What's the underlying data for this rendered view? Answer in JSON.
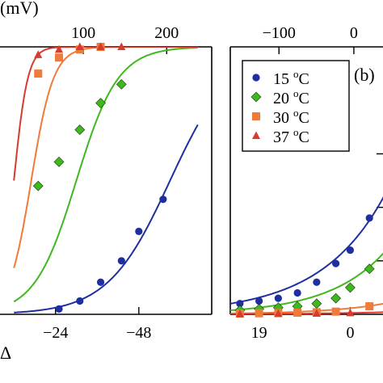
{
  "chart_data": [
    {
      "type": "line",
      "panel": "a",
      "top_axis_label": "(mV)",
      "top_ticks": [
        {
          "label": "100",
          "v": 100
        },
        {
          "label": "200",
          "v": 200
        }
      ],
      "bottom_axis_label": "Δ",
      "bottom_ticks": [
        {
          "label": "−24",
          "v": -24
        },
        {
          "label": "−48",
          "v": -48
        }
      ],
      "xlim_bottom": [
        -8,
        -69
      ],
      "xlim_top": [
        0,
        254
      ],
      "ylim": [
        0,
        1
      ],
      "series": [
        {
          "name": "15 °C",
          "color": "#1f2f9f",
          "marker": "circle",
          "midpoint": -57,
          "width": 9,
          "points": [
            [
              -25,
              0.02
            ],
            [
              -31,
              0.05
            ],
            [
              -37,
              0.12
            ],
            [
              -43,
              0.2
            ],
            [
              -48,
              0.31
            ],
            [
              -55,
              0.43
            ]
          ]
        },
        {
          "name": "20 °C",
          "color": "#3fb81f",
          "marker": "diamond",
          "midpoint": -30,
          "width": 6,
          "points": [
            [
              -19,
              0.48
            ],
            [
              -25,
              0.57
            ],
            [
              -31,
              0.69
            ],
            [
              -37,
              0.79
            ],
            [
              -43,
              0.86
            ]
          ]
        },
        {
          "name": "30 °C",
          "color": "#f07a3a",
          "marker": "square",
          "midpoint": -17,
          "width": 3.2,
          "points": [
            [
              -19,
              0.9
            ],
            [
              -25,
              0.96
            ],
            [
              -31,
              0.99
            ],
            [
              -37,
              1.0
            ]
          ]
        },
        {
          "name": "37 °C",
          "color": "#d93a2e",
          "marker": "triangle",
          "midpoint": -12,
          "width": 2,
          "points": [
            [
              -19,
              0.97
            ],
            [
              -25,
              0.99
            ],
            [
              -31,
              1.0
            ],
            [
              -37,
              1.0
            ],
            [
              -43,
              1.0
            ]
          ]
        }
      ]
    },
    {
      "type": "line",
      "panel": "b",
      "panel_label": "(b)",
      "top_ticks": [
        {
          "label": "−100",
          "v": -100
        },
        {
          "label": "0",
          "v": 0
        }
      ],
      "bottom_ticks": [
        {
          "label": "19",
          "v": 19
        },
        {
          "label": "0",
          "v": 0
        }
      ],
      "xlim_bottom": [
        25,
        -7
      ],
      "xlim_top": [
        -165,
        40
      ],
      "ylim": [
        0,
        1
      ],
      "legend": [
        {
          "name": "15 °C",
          "base": "15 ",
          "unit": "C",
          "color": "#1f2f9f",
          "marker": "circle"
        },
        {
          "name": "20 °C",
          "base": "20 ",
          "unit": "C",
          "color": "#3fb81f",
          "marker": "diamond"
        },
        {
          "name": "30 °C",
          "base": "30 ",
          "unit": "C",
          "color": "#f07a3a",
          "marker": "square"
        },
        {
          "name": "37 °C",
          "base": "37 ",
          "unit": "C",
          "color": "#d93a2e",
          "marker": "triangle"
        }
      ],
      "legend_position": "top-left",
      "series": [
        {
          "name": "15 °C",
          "color": "#1f2f9f",
          "marker": "circle",
          "points": [
            [
              23,
              0.04
            ],
            [
              19,
              0.05
            ],
            [
              15,
              0.06
            ],
            [
              11,
              0.08
            ],
            [
              7,
              0.12
            ],
            [
              3,
              0.19
            ],
            [
              0,
              0.24
            ],
            [
              -4,
              0.36
            ]
          ],
          "curve_end": [
            -7,
            0.44
          ]
        },
        {
          "name": "20 °C",
          "color": "#3fb81f",
          "marker": "diamond",
          "points": [
            [
              23,
              0.015
            ],
            [
              19,
              0.02
            ],
            [
              15,
              0.025
            ],
            [
              11,
              0.03
            ],
            [
              7,
              0.04
            ],
            [
              3,
              0.06
            ],
            [
              0,
              0.1
            ],
            [
              -4,
              0.17
            ]
          ],
          "curve_end": [
            -7,
            0.23
          ]
        },
        {
          "name": "30 °C",
          "color": "#f07a3a",
          "marker": "square",
          "points": [
            [
              23,
              0.003
            ],
            [
              19,
              0.004
            ],
            [
              15,
              0.005
            ],
            [
              11,
              0.006
            ],
            [
              7,
              0.008
            ],
            [
              3,
              0.01
            ],
            [
              -4,
              0.03
            ]
          ],
          "curve_end": [
            -7,
            0.04
          ]
        },
        {
          "name": "37 °C",
          "color": "#d93a2e",
          "marker": "triangle",
          "points": [
            [
              23,
              0.001
            ],
            [
              15,
              0.002
            ],
            [
              7,
              0.003
            ],
            [
              0,
              0.005
            ]
          ],
          "curve_end": [
            -7,
            0.008
          ]
        }
      ]
    }
  ]
}
